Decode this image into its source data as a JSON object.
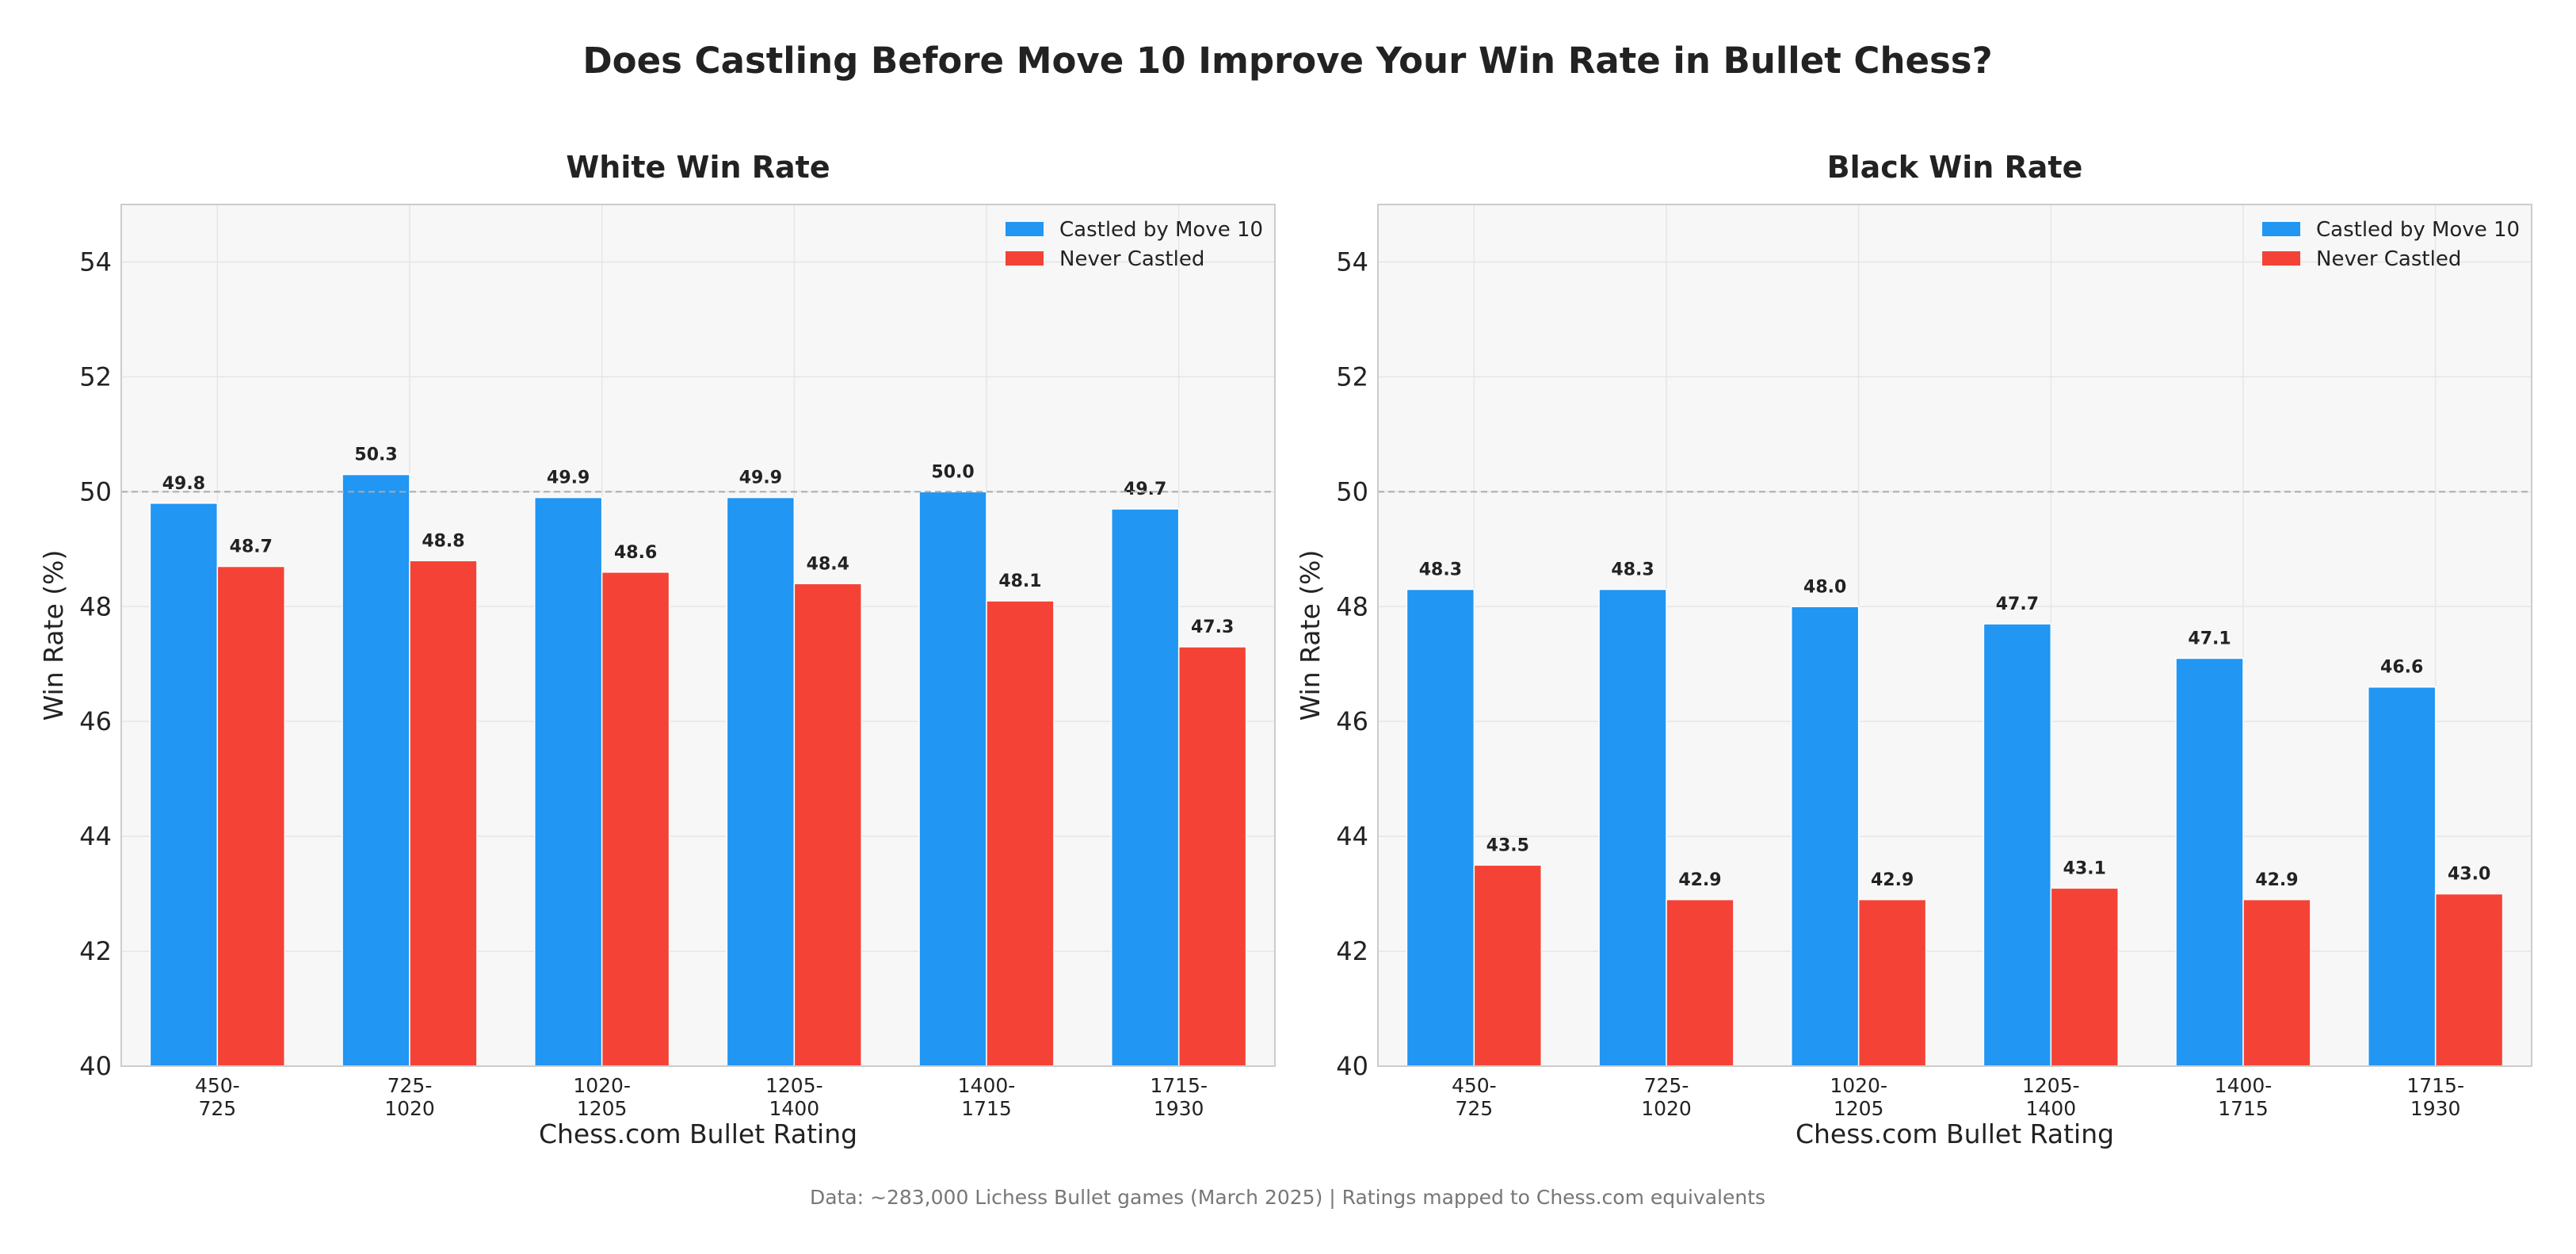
{
  "title": "Does Castling Before Move 10 Improve Your Win Rate in Bullet Chess?",
  "footnote": "Data: ~283,000 Lichess Bullet games (March 2025) | Ratings mapped to Chess.com equivalents",
  "colors": {
    "castled": "#2196F3",
    "never": "#F44336",
    "panel_bg": "#F7F7F7",
    "grid": "#E6E6E6",
    "reference": "#AAAAAA"
  },
  "chart_data": [
    {
      "type": "bar",
      "title": "White Win Rate",
      "xlabel": "Chess.com Bullet Rating",
      "ylabel": "Win Rate (%)",
      "categories": [
        "450-\n725",
        "725-\n1020",
        "1020-\n1205",
        "1205-\n1400",
        "1400-\n1715",
        "1715-\n1930"
      ],
      "series": [
        {
          "name": "Castled by Move 10",
          "values": [
            49.8,
            50.3,
            49.9,
            49.9,
            50.0,
            49.7
          ]
        },
        {
          "name": "Never Castled",
          "values": [
            48.7,
            48.8,
            48.6,
            48.4,
            48.1,
            47.3
          ]
        }
      ],
      "ylim": [
        40,
        55
      ],
      "yticks": [
        40,
        42,
        44,
        46,
        48,
        50,
        52,
        54
      ],
      "reference_line": 50,
      "grid": true,
      "legend": "top-right"
    },
    {
      "type": "bar",
      "title": "Black Win Rate",
      "xlabel": "Chess.com Bullet Rating",
      "ylabel": "Win Rate (%)",
      "categories": [
        "450-\n725",
        "725-\n1020",
        "1020-\n1205",
        "1205-\n1400",
        "1400-\n1715",
        "1715-\n1930"
      ],
      "series": [
        {
          "name": "Castled by Move 10",
          "values": [
            48.3,
            48.3,
            48.0,
            47.7,
            47.1,
            46.6
          ]
        },
        {
          "name": "Never Castled",
          "values": [
            43.5,
            42.9,
            42.9,
            43.1,
            42.9,
            43.0
          ]
        }
      ],
      "ylim": [
        40,
        55
      ],
      "yticks": [
        40,
        42,
        44,
        46,
        48,
        50,
        52,
        54
      ],
      "reference_line": 50,
      "grid": true,
      "legend": "top-right"
    }
  ]
}
